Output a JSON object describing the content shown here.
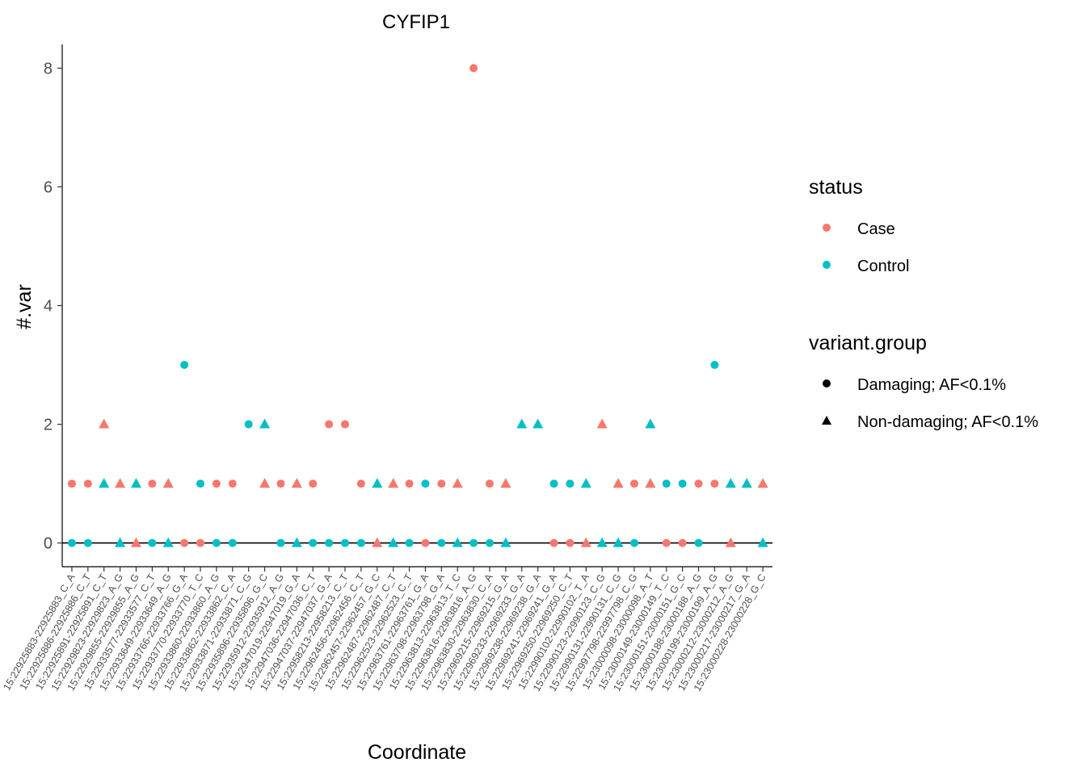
{
  "chart_data": {
    "type": "scatter",
    "title": "CYFIP1",
    "xlabel": "Coordinate",
    "ylabel": "#.var",
    "ylim": [
      -0.4,
      8.4
    ],
    "yticks": [
      0,
      2,
      4,
      6,
      8
    ],
    "hline_y": 0,
    "grid": false,
    "legend_placement": "right",
    "colors": {
      "Case": "#F8766D",
      "Control": "#00BFC4"
    },
    "categories": [
      "15:22925883-22925883_C_A",
      "15:22925886-22925886_C_T",
      "15:22925891-22925891_C_T",
      "15:22929823-22929823_A_G",
      "15:22929855-22929855_A_G",
      "15:22933577-22933577_C_T",
      "15:22933649-22933649_A_G",
      "15:22933766-22933766_G_A",
      "15:22933770-22933770_T_C",
      "15:22933860-22933860_A_G",
      "15:22933862-22933862_C_A",
      "15:22933871-22933871_C_G",
      "15:22935896-22935896_G_C",
      "15:22935912-22935912_A_G",
      "15:22947019-22947019_G_A",
      "15:22947036-22947036_C_T",
      "15:22947037-22947037_G_A",
      "15:22958213-22958213_C_T",
      "15:22962456-22962456_C_T",
      "15:22962457-22962457_G_C",
      "15:22962487-22962487_C_T",
      "15:22962523-22962523_C_T",
      "15:22963761-22963761_G_A",
      "15:22963798-22963798_G_A",
      "15:22963813-22963813_T_C",
      "15:22963816-22963816_A_G",
      "15:22963830-22963830_C_A",
      "15:22969215-22969215_G_A",
      "15:22969233-22969233_G_A",
      "15:22969238-22969238_G_A",
      "15:22969241-22969241_G_A",
      "15:22969250-22969250_C_T",
      "15:22990102-22990102_T_A",
      "15:22990123-22990123_C_G",
      "15:22990131-22990131_C_G",
      "15:22997798-22997798_C_G",
      "15:23000098-23000098_A_T",
      "15:23000149-23000149_T_C",
      "15:23000151-23000151_G_C",
      "15:23000188-23000188_A_G",
      "15:23000199-23000199_A_G",
      "15:23000212-23000212_A_G",
      "15:23000217-23000217_G_A",
      "15:23000228-23000228_G_C"
    ],
    "points": [
      {
        "x": 1,
        "y": 1,
        "status": "Case",
        "group": "Damaging; AF<0.1%"
      },
      {
        "x": 1,
        "y": 0,
        "status": "Control",
        "group": "Damaging; AF<0.1%"
      },
      {
        "x": 2,
        "y": 1,
        "status": "Case",
        "group": "Damaging; AF<0.1%"
      },
      {
        "x": 2,
        "y": 0,
        "status": "Control",
        "group": "Damaging; AF<0.1%"
      },
      {
        "x": 3,
        "y": 2,
        "status": "Case",
        "group": "Non-damaging; AF<0.1%"
      },
      {
        "x": 3,
        "y": 1,
        "status": "Control",
        "group": "Non-damaging; AF<0.1%"
      },
      {
        "x": 4,
        "y": 1,
        "status": "Case",
        "group": "Non-damaging; AF<0.1%"
      },
      {
        "x": 4,
        "y": 0,
        "status": "Control",
        "group": "Non-damaging; AF<0.1%"
      },
      {
        "x": 5,
        "y": 1,
        "status": "Control",
        "group": "Non-damaging; AF<0.1%"
      },
      {
        "x": 5,
        "y": 0,
        "status": "Case",
        "group": "Non-damaging; AF<0.1%"
      },
      {
        "x": 6,
        "y": 1,
        "status": "Case",
        "group": "Damaging; AF<0.1%"
      },
      {
        "x": 6,
        "y": 0,
        "status": "Control",
        "group": "Damaging; AF<0.1%"
      },
      {
        "x": 7,
        "y": 1,
        "status": "Case",
        "group": "Non-damaging; AF<0.1%"
      },
      {
        "x": 7,
        "y": 0,
        "status": "Control",
        "group": "Non-damaging; AF<0.1%"
      },
      {
        "x": 8,
        "y": 3,
        "status": "Control",
        "group": "Damaging; AF<0.1%"
      },
      {
        "x": 8,
        "y": 0,
        "status": "Case",
        "group": "Damaging; AF<0.1%"
      },
      {
        "x": 9,
        "y": 1,
        "status": "Control",
        "group": "Damaging; AF<0.1%"
      },
      {
        "x": 9,
        "y": 0,
        "status": "Case",
        "group": "Damaging; AF<0.1%"
      },
      {
        "x": 10,
        "y": 1,
        "status": "Case",
        "group": "Damaging; AF<0.1%"
      },
      {
        "x": 10,
        "y": 0,
        "status": "Control",
        "group": "Damaging; AF<0.1%"
      },
      {
        "x": 11,
        "y": 1,
        "status": "Case",
        "group": "Damaging; AF<0.1%"
      },
      {
        "x": 11,
        "y": 0,
        "status": "Control",
        "group": "Damaging; AF<0.1%"
      },
      {
        "x": 12,
        "y": 2,
        "status": "Control",
        "group": "Damaging; AF<0.1%"
      },
      {
        "x": 13,
        "y": 2,
        "status": "Control",
        "group": "Non-damaging; AF<0.1%"
      },
      {
        "x": 13,
        "y": 1,
        "status": "Case",
        "group": "Non-damaging; AF<0.1%"
      },
      {
        "x": 14,
        "y": 1,
        "status": "Case",
        "group": "Damaging; AF<0.1%"
      },
      {
        "x": 14,
        "y": 0,
        "status": "Control",
        "group": "Damaging; AF<0.1%"
      },
      {
        "x": 15,
        "y": 1,
        "status": "Case",
        "group": "Non-damaging; AF<0.1%"
      },
      {
        "x": 15,
        "y": 0,
        "status": "Control",
        "group": "Non-damaging; AF<0.1%"
      },
      {
        "x": 16,
        "y": 1,
        "status": "Case",
        "group": "Damaging; AF<0.1%"
      },
      {
        "x": 16,
        "y": 0,
        "status": "Control",
        "group": "Damaging; AF<0.1%"
      },
      {
        "x": 17,
        "y": 2,
        "status": "Case",
        "group": "Damaging; AF<0.1%"
      },
      {
        "x": 17,
        "y": 0,
        "status": "Control",
        "group": "Damaging; AF<0.1%"
      },
      {
        "x": 18,
        "y": 2,
        "status": "Case",
        "group": "Damaging; AF<0.1%"
      },
      {
        "x": 18,
        "y": 0,
        "status": "Control",
        "group": "Damaging; AF<0.1%"
      },
      {
        "x": 19,
        "y": 1,
        "status": "Case",
        "group": "Damaging; AF<0.1%"
      },
      {
        "x": 19,
        "y": 0,
        "status": "Control",
        "group": "Damaging; AF<0.1%"
      },
      {
        "x": 20,
        "y": 1,
        "status": "Control",
        "group": "Non-damaging; AF<0.1%"
      },
      {
        "x": 20,
        "y": 0,
        "status": "Case",
        "group": "Non-damaging; AF<0.1%"
      },
      {
        "x": 21,
        "y": 1,
        "status": "Case",
        "group": "Non-damaging; AF<0.1%"
      },
      {
        "x": 21,
        "y": 0,
        "status": "Control",
        "group": "Non-damaging; AF<0.1%"
      },
      {
        "x": 22,
        "y": 1,
        "status": "Case",
        "group": "Damaging; AF<0.1%"
      },
      {
        "x": 22,
        "y": 0,
        "status": "Control",
        "group": "Damaging; AF<0.1%"
      },
      {
        "x": 23,
        "y": 1,
        "status": "Control",
        "group": "Damaging; AF<0.1%"
      },
      {
        "x": 23,
        "y": 0,
        "status": "Case",
        "group": "Damaging; AF<0.1%"
      },
      {
        "x": 24,
        "y": 1,
        "status": "Case",
        "group": "Damaging; AF<0.1%"
      },
      {
        "x": 24,
        "y": 0,
        "status": "Control",
        "group": "Damaging; AF<0.1%"
      },
      {
        "x": 25,
        "y": 1,
        "status": "Case",
        "group": "Non-damaging; AF<0.1%"
      },
      {
        "x": 25,
        "y": 0,
        "status": "Control",
        "group": "Non-damaging; AF<0.1%"
      },
      {
        "x": 26,
        "y": 8,
        "status": "Case",
        "group": "Damaging; AF<0.1%"
      },
      {
        "x": 26,
        "y": 0,
        "status": "Control",
        "group": "Damaging; AF<0.1%"
      },
      {
        "x": 27,
        "y": 1,
        "status": "Case",
        "group": "Damaging; AF<0.1%"
      },
      {
        "x": 27,
        "y": 0,
        "status": "Control",
        "group": "Damaging; AF<0.1%"
      },
      {
        "x": 28,
        "y": 1,
        "status": "Case",
        "group": "Non-damaging; AF<0.1%"
      },
      {
        "x": 28,
        "y": 0,
        "status": "Control",
        "group": "Non-damaging; AF<0.1%"
      },
      {
        "x": 29,
        "y": 2,
        "status": "Control",
        "group": "Non-damaging; AF<0.1%"
      },
      {
        "x": 30,
        "y": 2,
        "status": "Control",
        "group": "Non-damaging; AF<0.1%"
      },
      {
        "x": 31,
        "y": 1,
        "status": "Control",
        "group": "Damaging; AF<0.1%"
      },
      {
        "x": 31,
        "y": 0,
        "status": "Case",
        "group": "Damaging; AF<0.1%"
      },
      {
        "x": 32,
        "y": 1,
        "status": "Control",
        "group": "Damaging; AF<0.1%"
      },
      {
        "x": 32,
        "y": 0,
        "status": "Case",
        "group": "Damaging; AF<0.1%"
      },
      {
        "x": 33,
        "y": 1,
        "status": "Control",
        "group": "Non-damaging; AF<0.1%"
      },
      {
        "x": 33,
        "y": 0,
        "status": "Case",
        "group": "Non-damaging; AF<0.1%"
      },
      {
        "x": 34,
        "y": 2,
        "status": "Case",
        "group": "Non-damaging; AF<0.1%"
      },
      {
        "x": 34,
        "y": 0,
        "status": "Control",
        "group": "Non-damaging; AF<0.1%"
      },
      {
        "x": 35,
        "y": 1,
        "status": "Case",
        "group": "Non-damaging; AF<0.1%"
      },
      {
        "x": 35,
        "y": 0,
        "status": "Control",
        "group": "Non-damaging; AF<0.1%"
      },
      {
        "x": 36,
        "y": 1,
        "status": "Case",
        "group": "Damaging; AF<0.1%"
      },
      {
        "x": 36,
        "y": 0,
        "status": "Control",
        "group": "Damaging; AF<0.1%"
      },
      {
        "x": 37,
        "y": 2,
        "status": "Control",
        "group": "Non-damaging; AF<0.1%"
      },
      {
        "x": 37,
        "y": 1,
        "status": "Case",
        "group": "Non-damaging; AF<0.1%"
      },
      {
        "x": 38,
        "y": 1,
        "status": "Control",
        "group": "Damaging; AF<0.1%"
      },
      {
        "x": 38,
        "y": 0,
        "status": "Case",
        "group": "Damaging; AF<0.1%"
      },
      {
        "x": 39,
        "y": 1,
        "status": "Control",
        "group": "Damaging; AF<0.1%"
      },
      {
        "x": 39,
        "y": 0,
        "status": "Case",
        "group": "Damaging; AF<0.1%"
      },
      {
        "x": 40,
        "y": 1,
        "status": "Case",
        "group": "Damaging; AF<0.1%"
      },
      {
        "x": 40,
        "y": 0,
        "status": "Control",
        "group": "Damaging; AF<0.1%"
      },
      {
        "x": 41,
        "y": 3,
        "status": "Control",
        "group": "Damaging; AF<0.1%"
      },
      {
        "x": 41,
        "y": 1,
        "status": "Case",
        "group": "Damaging; AF<0.1%"
      },
      {
        "x": 42,
        "y": 1,
        "status": "Control",
        "group": "Non-damaging; AF<0.1%"
      },
      {
        "x": 42,
        "y": 0,
        "status": "Case",
        "group": "Non-damaging; AF<0.1%"
      },
      {
        "x": 43,
        "y": 1,
        "status": "Control",
        "group": "Non-damaging; AF<0.1%"
      },
      {
        "x": 44,
        "y": 1,
        "status": "Case",
        "group": "Non-damaging; AF<0.1%"
      },
      {
        "x": 44,
        "y": 0,
        "status": "Control",
        "group": "Non-damaging; AF<0.1%"
      }
    ]
  },
  "legend": {
    "status_title": "status",
    "status_items": [
      {
        "label": "Case",
        "color": "#F8766D"
      },
      {
        "label": "Control",
        "color": "#00BFC4"
      }
    ],
    "group_title": "variant.group",
    "group_items": [
      {
        "label": "Damaging; AF<0.1%",
        "shape": "circle-icon"
      },
      {
        "label": "Non-damaging; AF<0.1%",
        "shape": "triangle-icon"
      }
    ]
  }
}
